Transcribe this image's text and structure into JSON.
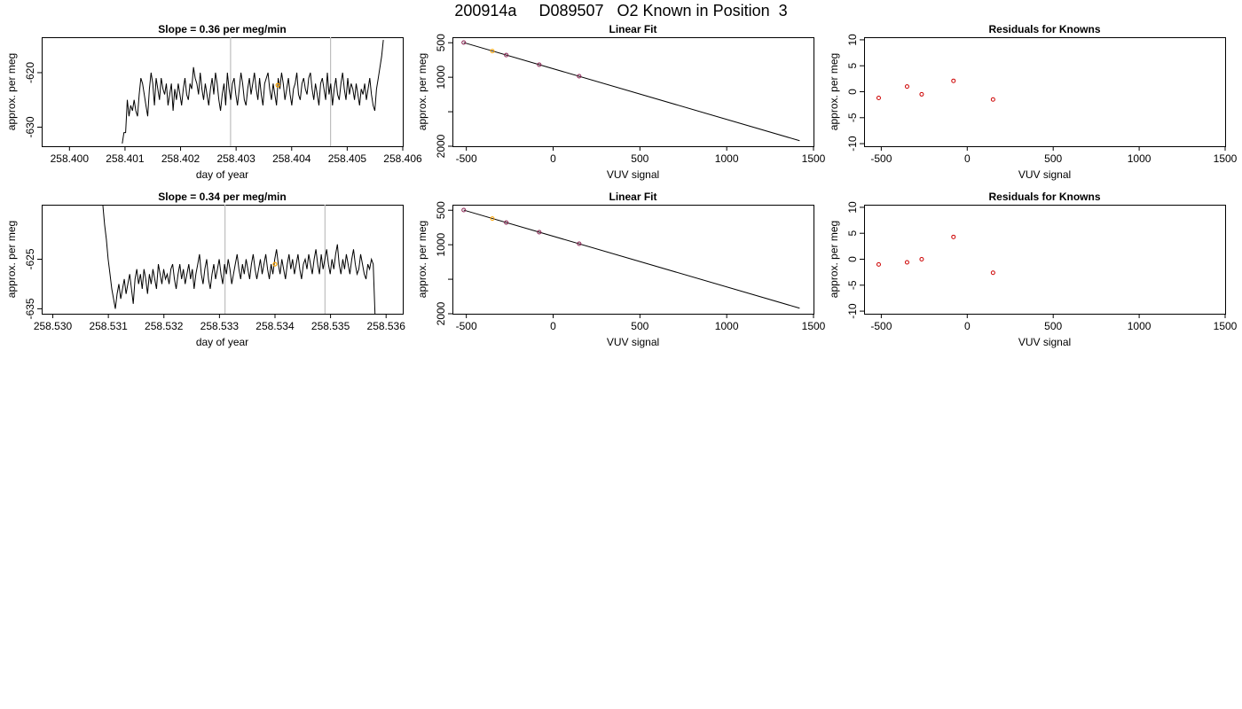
{
  "figure": {
    "title": "200914a     D089507   O2 Known in Position  3"
  },
  "colors": {
    "trace": "#000000",
    "vline": "#bebebe",
    "highlight": "#ffa500",
    "residual_point": "#cd0000"
  },
  "chart_data": [
    {
      "id": "row1-trace",
      "type": "line",
      "title": "Slope =  0.36  per meg/min",
      "xlabel": "day of year",
      "ylabel": "approx. per meg",
      "xlim": [
        258.3995,
        258.406
      ],
      "ylim": [
        -633.5,
        -613.5
      ],
      "xticks": [
        258.4,
        258.401,
        258.402,
        258.403,
        258.404,
        258.405,
        258.406
      ],
      "xtick_labels": [
        "258.400",
        "258.401",
        "258.402",
        "258.403",
        "258.404",
        "258.405",
        "258.406"
      ],
      "yticks": [
        -630,
        -620
      ],
      "ytick_labels": [
        "-630",
        "-620"
      ],
      "vlines": [
        258.4029,
        258.4047
      ],
      "highlight_point": {
        "x": 258.40375,
        "y": -622.3
      },
      "line_x_range": [
        258.40095,
        258.40565
      ],
      "line_y": [
        -633,
        -631,
        -631,
        -625,
        -628,
        -626,
        -627,
        -625,
        -627,
        -628,
        -624,
        -621,
        -622,
        -624,
        -626,
        -628,
        -623,
        -620,
        -622,
        -626,
        -621,
        -623,
        -625,
        -621,
        -623,
        -624,
        -622,
        -626,
        -624,
        -622,
        -627,
        -623,
        -625,
        -622,
        -624,
        -626,
        -623,
        -621,
        -624,
        -625,
        -622,
        -623,
        -619,
        -621,
        -622,
        -624,
        -620,
        -623,
        -625,
        -622,
        -624,
        -626,
        -623,
        -621,
        -624,
        -620,
        -622,
        -625,
        -627,
        -624,
        -622,
        -626,
        -620,
        -623,
        -625,
        -622,
        -621,
        -624,
        -626,
        -623,
        -620,
        -622,
        -625,
        -626,
        -623,
        -621,
        -624,
        -622,
        -620,
        -623,
        -625,
        -621,
        -624,
        -626,
        -622,
        -621,
        -620,
        -623,
        -625,
        -622,
        -624,
        -626,
        -621,
        -623,
        -620,
        -622,
        -625,
        -623,
        -621,
        -624,
        -626,
        -623,
        -622,
        -620,
        -624,
        -625,
        -622,
        -621,
        -623,
        -624,
        -621,
        -620,
        -623,
        -625,
        -622,
        -624,
        -626,
        -622,
        -621,
        -623,
        -625,
        -620,
        -624,
        -622,
        -626,
        -623,
        -621,
        -624,
        -625,
        -622,
        -620,
        -623,
        -625,
        -621,
        -624,
        -622,
        -623,
        -625,
        -622,
        -624,
        -626,
        -623,
        -624,
        -622,
        -625,
        -623,
        -621,
        -624,
        -626,
        -627,
        -623,
        -621,
        -619,
        -617,
        -614
      ]
    },
    {
      "id": "row1-fit",
      "type": "line",
      "title": "Linear Fit",
      "xlabel": "VUV signal",
      "ylabel": "approx. per meg",
      "xlim": [
        -580,
        1500
      ],
      "ylim": [
        -2000,
        -420
      ],
      "xticks": [
        -500,
        0,
        500,
        1000,
        1500
      ],
      "xtick_labels": [
        "-500",
        "0",
        "500",
        "1000",
        "1500"
      ],
      "yticks": [
        -2000,
        -1500,
        -1000,
        -500
      ],
      "ytick_labels": [
        "2000",
        "",
        "1000",
        "500"
      ],
      "line": {
        "x1": -515,
        "y1": -498,
        "x2": 1420,
        "y2": -1920
      },
      "points": [
        {
          "x": -515,
          "y": -497
        },
        {
          "x": -350,
          "y": -621
        },
        {
          "x": -270,
          "y": -679
        },
        {
          "x": -80,
          "y": -818
        },
        {
          "x": 150,
          "y": -985
        }
      ],
      "highlight_index": 1
    },
    {
      "id": "row1-resid",
      "type": "scatter",
      "title": "Residuals for Knowns",
      "xlabel": "VUV signal",
      "ylabel": "approx. per meg",
      "xlim": [
        -600,
        1500
      ],
      "ylim": [
        -10.5,
        10.5
      ],
      "xticks": [
        -500,
        0,
        500,
        1000,
        1500
      ],
      "xtick_labels": [
        "-500",
        "0",
        "500",
        "1000",
        "1500"
      ],
      "yticks": [
        -10,
        -5,
        0,
        5,
        10
      ],
      "ytick_labels": [
        "-10",
        "-5",
        "0",
        "5",
        "10"
      ],
      "points": [
        {
          "x": -515,
          "y": -1.2
        },
        {
          "x": -350,
          "y": 1.0
        },
        {
          "x": -265,
          "y": -0.5
        },
        {
          "x": -80,
          "y": 2.1
        },
        {
          "x": 150,
          "y": -1.5
        }
      ]
    },
    {
      "id": "row2-trace",
      "type": "line",
      "title": "Slope =  0.34  per meg/min",
      "xlabel": "day of year",
      "ylabel": "approx. per meg",
      "xlim": [
        258.5298,
        258.5363
      ],
      "ylim": [
        -636,
        -614
      ],
      "xticks": [
        258.53,
        258.531,
        258.532,
        258.533,
        258.534,
        258.535,
        258.536
      ],
      "xtick_labels": [
        "258.530",
        "258.531",
        "258.532",
        "258.533",
        "258.534",
        "258.535",
        "258.536"
      ],
      "yticks": [
        -635,
        -625
      ],
      "ytick_labels": [
        "-635",
        "-625"
      ],
      "vlines": [
        258.5331,
        258.5349
      ],
      "highlight_point": {
        "x": 258.534,
        "y": -626
      },
      "line_x_range": [
        258.5309,
        258.5358
      ],
      "line_y": [
        -614,
        -618,
        -621,
        -625,
        -628,
        -631,
        -633,
        -635,
        -632,
        -630,
        -633,
        -631,
        -629,
        -632,
        -630,
        -628,
        -631,
        -634,
        -629,
        -627,
        -630,
        -628,
        -631,
        -627,
        -629,
        -632,
        -628,
        -630,
        -627,
        -629,
        -631,
        -626,
        -628,
        -630,
        -627,
        -629,
        -628,
        -630,
        -627,
        -626,
        -629,
        -631,
        -628,
        -626,
        -629,
        -627,
        -630,
        -628,
        -626,
        -629,
        -627,
        -631,
        -628,
        -626,
        -624,
        -628,
        -630,
        -627,
        -625,
        -629,
        -631,
        -628,
        -626,
        -629,
        -627,
        -625,
        -628,
        -630,
        -626,
        -628,
        -625,
        -627,
        -630,
        -628,
        -626,
        -624,
        -627,
        -629,
        -626,
        -628,
        -625,
        -627,
        -629,
        -626,
        -624,
        -627,
        -629,
        -627,
        -625,
        -628,
        -626,
        -624,
        -627,
        -629,
        -626,
        -628,
        -625,
        -623,
        -626,
        -628,
        -625,
        -627,
        -629,
        -626,
        -624,
        -627,
        -625,
        -628,
        -626,
        -624,
        -627,
        -629,
        -626,
        -625,
        -627,
        -624,
        -626,
        -628,
        -625,
        -623,
        -626,
        -628,
        -624,
        -627,
        -625,
        -623,
        -626,
        -628,
        -625,
        -627,
        -624,
        -622,
        -626,
        -628,
        -625,
        -627,
        -624,
        -626,
        -628,
        -625,
        -623,
        -626,
        -628,
        -627,
        -624,
        -626,
        -628,
        -629,
        -626,
        -627,
        -625,
        -626,
        -636
      ]
    },
    {
      "id": "row2-fit",
      "type": "line",
      "title": "Linear Fit",
      "xlabel": "VUV signal",
      "ylabel": "approx. per meg",
      "xlim": [
        -580,
        1500
      ],
      "ylim": [
        -2000,
        -420
      ],
      "xticks": [
        -500,
        0,
        500,
        1000,
        1500
      ],
      "xtick_labels": [
        "-500",
        "0",
        "500",
        "1000",
        "1500"
      ],
      "yticks": [
        -2000,
        -1500,
        -1000,
        -500
      ],
      "ytick_labels": [
        "2000",
        "",
        "1000",
        "500"
      ],
      "line": {
        "x1": -515,
        "y1": -498,
        "x2": 1420,
        "y2": -1920
      },
      "points": [
        {
          "x": -515,
          "y": -497
        },
        {
          "x": -350,
          "y": -621
        },
        {
          "x": -270,
          "y": -679
        },
        {
          "x": -80,
          "y": -818
        },
        {
          "x": 150,
          "y": -985
        }
      ],
      "highlight_index": 1
    },
    {
      "id": "row2-resid",
      "type": "scatter",
      "title": "Residuals for Knowns",
      "xlabel": "VUV signal",
      "ylabel": "approx. per meg",
      "xlim": [
        -600,
        1500
      ],
      "ylim": [
        -10.5,
        10.5
      ],
      "xticks": [
        -500,
        0,
        500,
        1000,
        1500
      ],
      "xtick_labels": [
        "-500",
        "0",
        "500",
        "1000",
        "1500"
      ],
      "yticks": [
        -10,
        -5,
        0,
        5,
        10
      ],
      "ytick_labels": [
        "-10",
        "-5",
        "0",
        "5",
        "10"
      ],
      "points": [
        {
          "x": -515,
          "y": -1.0
        },
        {
          "x": -350,
          "y": -0.6
        },
        {
          "x": -265,
          "y": 0.0
        },
        {
          "x": -80,
          "y": 4.3
        },
        {
          "x": 150,
          "y": -2.6
        }
      ]
    }
  ]
}
